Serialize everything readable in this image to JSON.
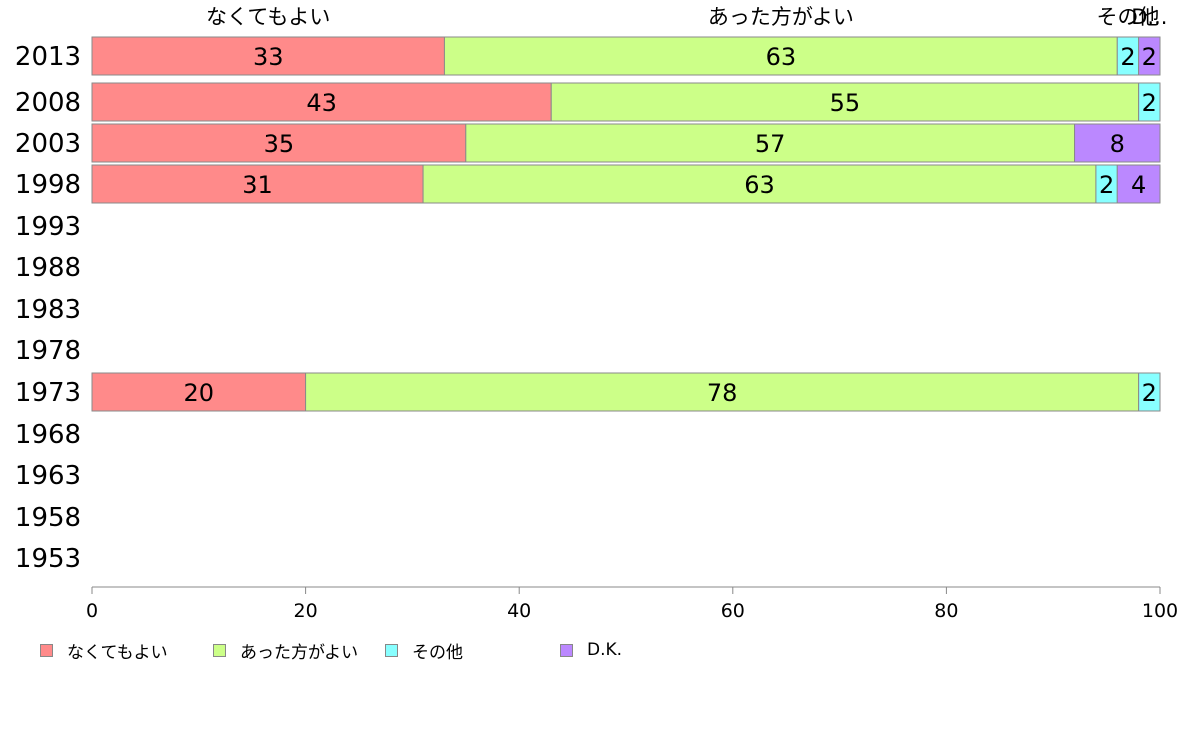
{
  "chart_data": {
    "type": "bar",
    "orientation": "horizontal",
    "stacked": true,
    "categories": [
      "2013",
      "2008",
      "2003",
      "1998",
      "1993",
      "1988",
      "1983",
      "1978",
      "1973",
      "1968",
      "1963",
      "1958",
      "1953"
    ],
    "series": [
      {
        "name": "なくてもよい",
        "color": "#FF8A8A",
        "values": [
          33,
          43,
          35,
          31,
          null,
          null,
          null,
          null,
          20,
          null,
          null,
          null,
          null
        ]
      },
      {
        "name": "あった方がよい",
        "color": "#CCFF88",
        "values": [
          63,
          55,
          57,
          63,
          null,
          null,
          null,
          null,
          78,
          null,
          null,
          null,
          null
        ]
      },
      {
        "name": "その他",
        "color": "#88FFFF",
        "values": [
          2,
          2,
          null,
          2,
          null,
          null,
          null,
          null,
          2,
          null,
          null,
          null,
          null
        ]
      },
      {
        "name": "D.K.",
        "color": "#BB88FF",
        "values": [
          2,
          null,
          8,
          4,
          null,
          null,
          null,
          null,
          null,
          null,
          null,
          null,
          null
        ]
      }
    ],
    "top_labels": [
      "なくてもよい",
      "あった方がよい",
      "その他",
      "D..."
    ],
    "xlim": [
      0,
      100
    ],
    "xticks": [
      "0",
      "20",
      "40",
      "60",
      "80",
      "100"
    ],
    "grid": false,
    "legend_position": "bottom"
  }
}
